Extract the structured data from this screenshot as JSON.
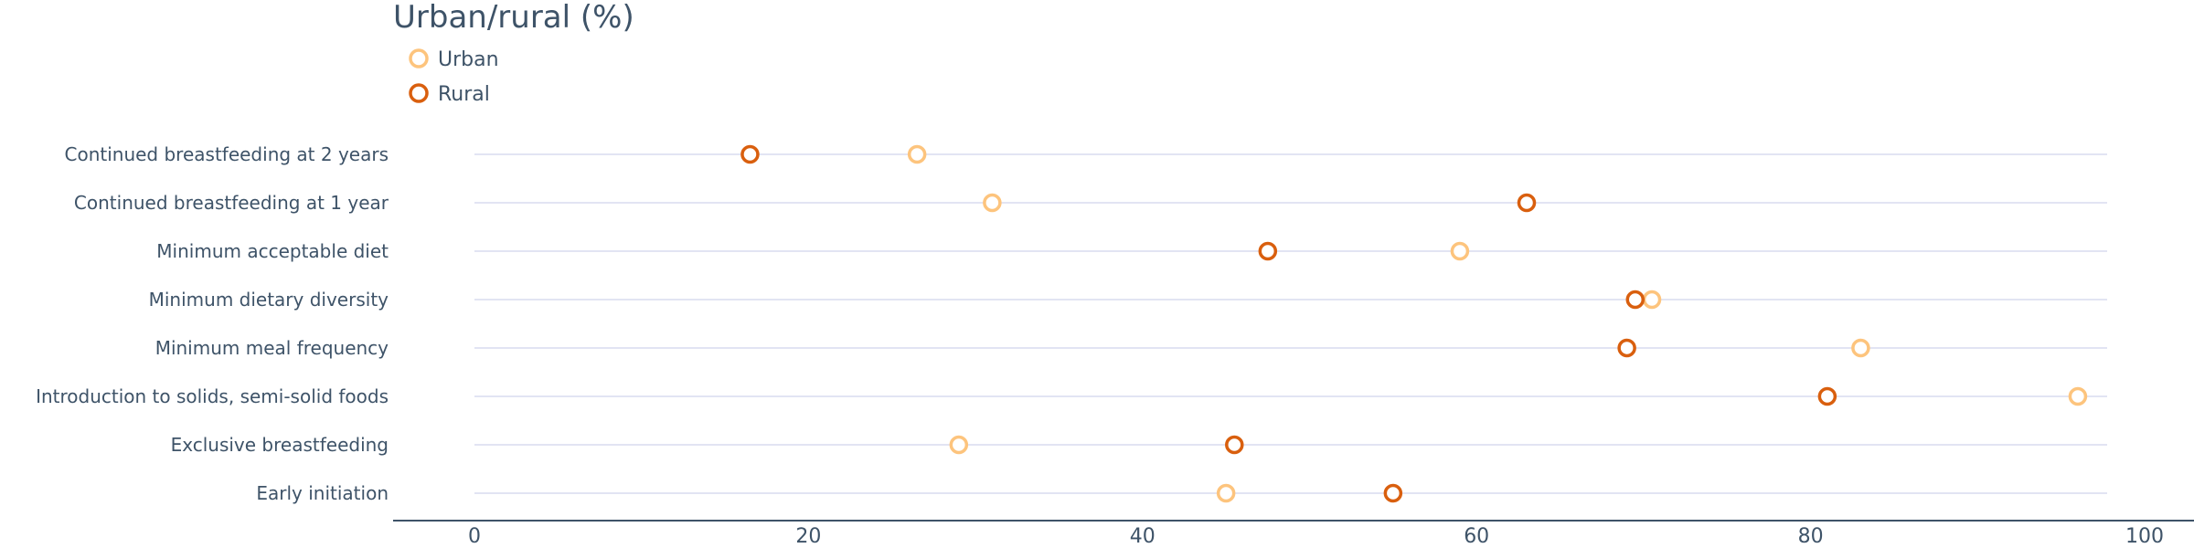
{
  "chart_data": {
    "type": "scatter",
    "title": "Urban/rural (%)",
    "categories": [
      "Continued breastfeeding at 2 years",
      "Continued breastfeeding at 1 year",
      "Minimum acceptable diet",
      "Minimum dietary diversity",
      "Minimum meal frequency",
      "Introduction to solids, semi-solid foods",
      "Exclusive breastfeeding",
      "Early initiation"
    ],
    "series": [
      {
        "name": "Urban",
        "color": "#fdc47d",
        "values": [
          26.5,
          31.0,
          59.0,
          70.5,
          83.0,
          96.0,
          29.0,
          45.0
        ]
      },
      {
        "name": "Rural",
        "color": "#d95f0e",
        "values": [
          16.5,
          63.0,
          47.5,
          69.5,
          69.0,
          81.0,
          45.5,
          55.0
        ]
      }
    ],
    "xlim": [
      0,
      100
    ],
    "xticks": [
      0,
      20,
      40,
      60,
      80,
      100
    ],
    "xlabel": "",
    "ylabel": "",
    "legend_position": "top-left",
    "grid": true,
    "colors": {
      "text": "#3e5368",
      "axis": "#3e5368",
      "gridline": "#d9dcef"
    }
  }
}
